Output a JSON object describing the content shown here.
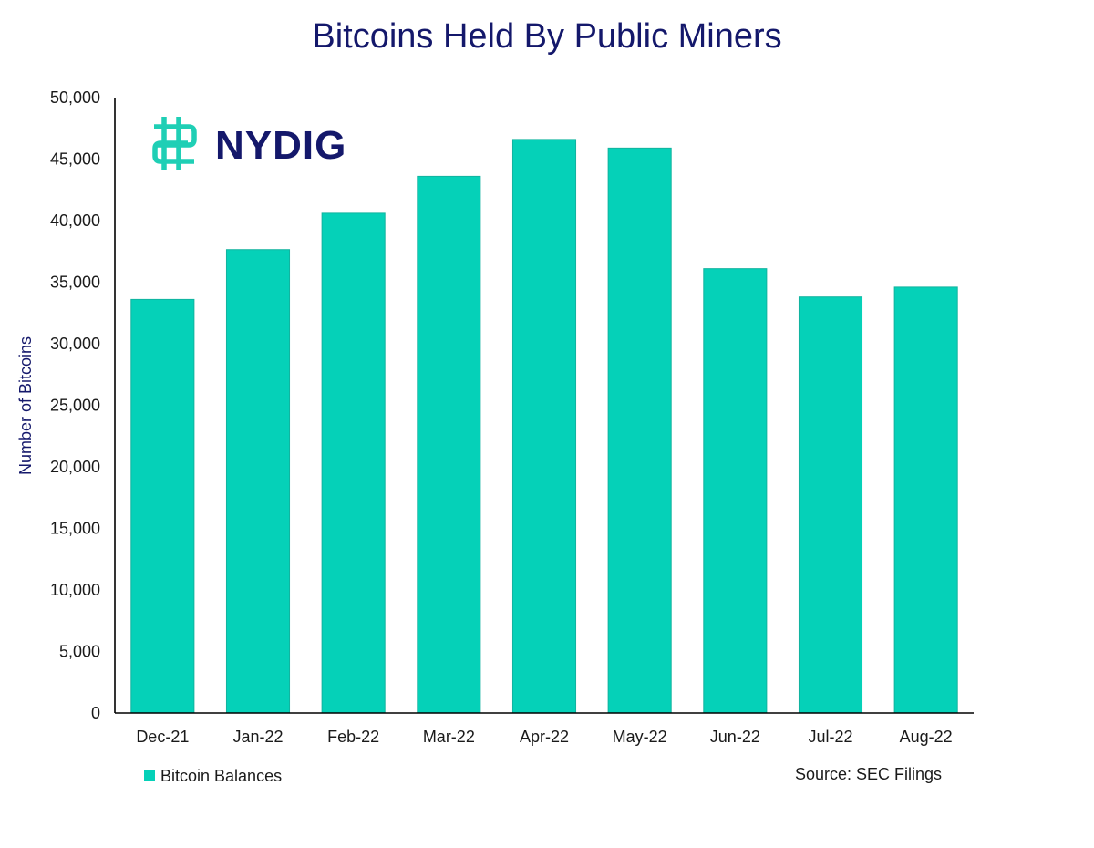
{
  "chart_data": {
    "type": "bar",
    "title": "Bitcoins Held By Public Miners",
    "xlabel": "",
    "ylabel": "Number of Bitcoins",
    "categories": [
      "Dec-21",
      "Jan-22",
      "Feb-22",
      "Mar-22",
      "Apr-22",
      "May-22",
      "Jun-22",
      "Jul-22",
      "Aug-22"
    ],
    "series": [
      {
        "name": "Bitcoin Balances",
        "values": [
          33600,
          37650,
          40600,
          43600,
          46600,
          45900,
          36100,
          33800,
          34600
        ]
      }
    ],
    "ylim": [
      0,
      50000
    ],
    "yticks": [
      0,
      5000,
      10000,
      15000,
      20000,
      25000,
      30000,
      35000,
      40000,
      45000,
      50000
    ],
    "ytick_labels": [
      "0",
      "5,000",
      "10,000",
      "15,000",
      "20,000",
      "25,000",
      "30,000",
      "35,000",
      "40,000",
      "45,000",
      "50,000"
    ],
    "grid": false,
    "legend": {
      "position": "bottom-left",
      "label": "Bitcoin Balances"
    },
    "source": "Source: SEC Filings",
    "logo_text": "NYDIG",
    "colors": {
      "bar": "#05D1B8",
      "bar_edge": "#12B39F",
      "title": "#14186B",
      "text": "#1a1a1a",
      "axis": "#000000",
      "logo_text": "#14186B",
      "logo_mark": "#1FCFB5"
    }
  }
}
